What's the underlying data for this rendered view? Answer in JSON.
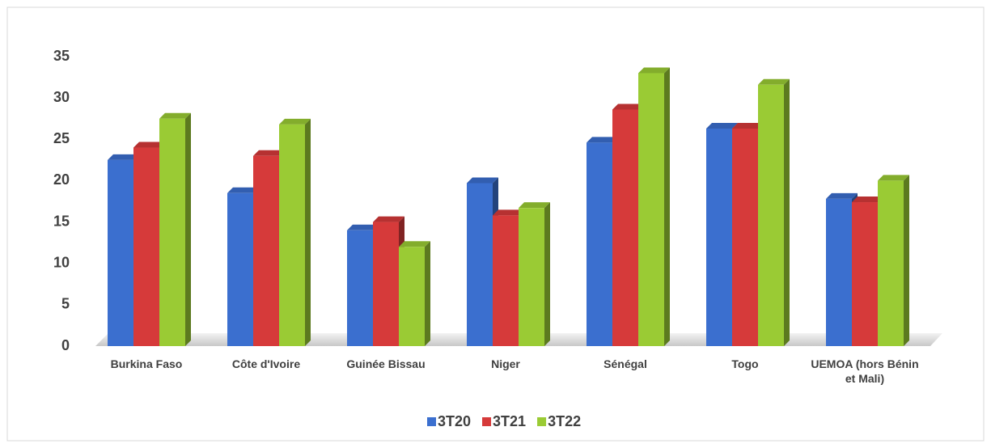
{
  "chart_data": {
    "type": "bar",
    "categories": [
      "Burkina Faso",
      "Côte d'Ivoire",
      "Guinée Bissau",
      "Niger",
      "Sénégal",
      "Togo",
      "UEMOA (hors Bénin et Mali)"
    ],
    "series": [
      {
        "name": "3T20",
        "color": "#3b6fcf",
        "values": [
          22.5,
          18.5,
          14,
          19.7,
          24.6,
          26.3,
          17.8
        ]
      },
      {
        "name": "3T21",
        "color": "#d63a3a",
        "values": [
          24,
          23,
          15,
          15.8,
          28.6,
          26.3,
          17.4
        ]
      },
      {
        "name": "3T22",
        "color": "#9acb34",
        "values": [
          27.5,
          26.8,
          12,
          16.7,
          33,
          31.6,
          20
        ]
      }
    ],
    "ylim": [
      0,
      35
    ],
    "yticks": [
      0,
      5,
      10,
      15,
      20,
      25,
      30,
      35
    ],
    "legend": "bottom"
  }
}
